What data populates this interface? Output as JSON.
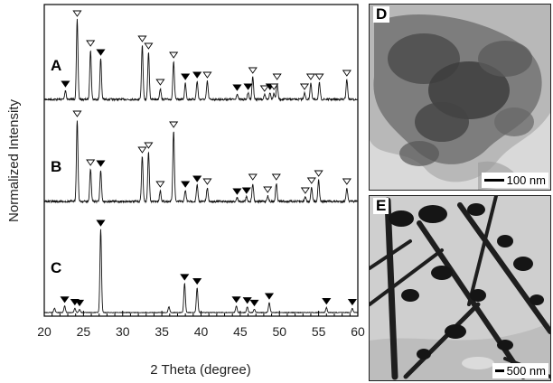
{
  "chart_data": {
    "type": "line",
    "xlabel": "2 Theta (degree)",
    "ylabel": "Normalized Intensity",
    "xlim": [
      20,
      60
    ],
    "xticks": [
      20,
      25,
      30,
      35,
      40,
      45,
      50,
      55,
      60
    ],
    "series": [
      {
        "name": "A",
        "peaks": [
          {
            "x": 22.7,
            "h": 0.1,
            "m": "filled"
          },
          {
            "x": 24.2,
            "h": 0.88,
            "m": "open"
          },
          {
            "x": 25.9,
            "h": 0.55,
            "m": "open"
          },
          {
            "x": 27.2,
            "h": 0.45,
            "m": "filled"
          },
          {
            "x": 32.5,
            "h": 0.6,
            "m": "open"
          },
          {
            "x": 33.3,
            "h": 0.52,
            "m": "open"
          },
          {
            "x": 34.8,
            "h": 0.12,
            "m": "open"
          },
          {
            "x": 36.5,
            "h": 0.42,
            "m": "open"
          },
          {
            "x": 38.0,
            "h": 0.18,
            "m": "filled"
          },
          {
            "x": 39.5,
            "h": 0.2,
            "m": "filled"
          },
          {
            "x": 40.8,
            "h": 0.2,
            "m": "open"
          },
          {
            "x": 44.6,
            "h": 0.06,
            "m": "filled"
          },
          {
            "x": 46.0,
            "h": 0.07,
            "m": "filled"
          },
          {
            "x": 46.6,
            "h": 0.25,
            "m": "open"
          },
          {
            "x": 48.1,
            "h": 0.05,
            "m": "open"
          },
          {
            "x": 48.8,
            "h": 0.07,
            "m": "filled"
          },
          {
            "x": 49.3,
            "h": 0.07,
            "m": "open"
          },
          {
            "x": 49.7,
            "h": 0.18,
            "m": "open"
          },
          {
            "x": 53.2,
            "h": 0.07,
            "m": "open"
          },
          {
            "x": 54.0,
            "h": 0.18,
            "m": "open"
          },
          {
            "x": 55.1,
            "h": 0.18,
            "m": "open"
          },
          {
            "x": 58.6,
            "h": 0.22,
            "m": "open"
          }
        ]
      },
      {
        "name": "B",
        "peaks": [
          {
            "x": 24.2,
            "h": 0.9,
            "m": "open"
          },
          {
            "x": 25.9,
            "h": 0.36,
            "m": "open"
          },
          {
            "x": 27.2,
            "h": 0.35,
            "m": "filled"
          },
          {
            "x": 32.5,
            "h": 0.5,
            "m": "open"
          },
          {
            "x": 33.3,
            "h": 0.55,
            "m": "open"
          },
          {
            "x": 34.8,
            "h": 0.12,
            "m": "open"
          },
          {
            "x": 36.5,
            "h": 0.78,
            "m": "open"
          },
          {
            "x": 38.0,
            "h": 0.12,
            "m": "filled"
          },
          {
            "x": 39.5,
            "h": 0.18,
            "m": "filled"
          },
          {
            "x": 40.8,
            "h": 0.15,
            "m": "open"
          },
          {
            "x": 44.6,
            "h": 0.04,
            "m": "filled"
          },
          {
            "x": 45.8,
            "h": 0.05,
            "m": "filled"
          },
          {
            "x": 46.6,
            "h": 0.2,
            "m": "open"
          },
          {
            "x": 48.5,
            "h": 0.06,
            "m": "open"
          },
          {
            "x": 49.6,
            "h": 0.2,
            "m": "open"
          },
          {
            "x": 53.3,
            "h": 0.05,
            "m": "open"
          },
          {
            "x": 54.1,
            "h": 0.16,
            "m": "open"
          },
          {
            "x": 55.0,
            "h": 0.24,
            "m": "open"
          },
          {
            "x": 58.6,
            "h": 0.15,
            "m": "open"
          }
        ]
      },
      {
        "name": "C",
        "peaks": [
          {
            "x": 21.3,
            "h": 0.05,
            "m": "none"
          },
          {
            "x": 22.6,
            "h": 0.08,
            "m": "filled"
          },
          {
            "x": 23.9,
            "h": 0.05,
            "m": "filled"
          },
          {
            "x": 24.5,
            "h": 0.04,
            "m": "filled"
          },
          {
            "x": 27.2,
            "h": 1.0,
            "m": "filled"
          },
          {
            "x": 35.9,
            "h": 0.07,
            "m": "none"
          },
          {
            "x": 37.9,
            "h": 0.35,
            "m": "filled"
          },
          {
            "x": 39.5,
            "h": 0.3,
            "m": "filled"
          },
          {
            "x": 44.5,
            "h": 0.08,
            "m": "filled"
          },
          {
            "x": 45.9,
            "h": 0.07,
            "m": "filled"
          },
          {
            "x": 46.8,
            "h": 0.04,
            "m": "filled"
          },
          {
            "x": 48.7,
            "h": 0.12,
            "m": "filled"
          },
          {
            "x": 56.0,
            "h": 0.06,
            "m": "filled"
          },
          {
            "x": 59.3,
            "h": 0.05,
            "m": "filled"
          }
        ]
      }
    ],
    "legend": "curve letters A, B, C left of traces",
    "markers": {
      "open": "open triangle",
      "filled": "filled triangle"
    },
    "grid": false
  },
  "panels": [
    {
      "letter": "D",
      "scale_label": "100 nm"
    },
    {
      "letter": "E",
      "scale_label": "500 nm"
    }
  ]
}
